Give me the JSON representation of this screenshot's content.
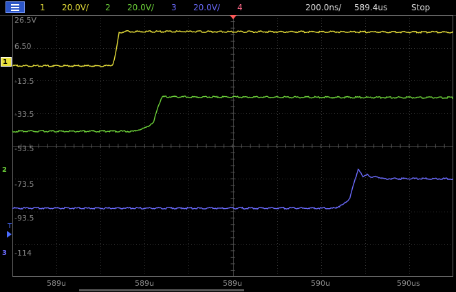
{
  "top_bar": {
    "ch1": {
      "num": "1",
      "scale": "20.0V/",
      "color": "#e8e03a"
    },
    "ch2": {
      "num": "2",
      "scale": "20.0V/",
      "color": "#6ed43a"
    },
    "ch3": {
      "num": "3",
      "scale": "20.0V/",
      "color": "#6c6cff"
    },
    "ch4": {
      "num": "4",
      "color": "#ff6a8a"
    },
    "timebase": "200.0ns/",
    "delay": "589.4us",
    "run_state": "Stop"
  },
  "voltage_labels": [
    "26.5V",
    "6.50",
    "-13.5",
    "-33.5",
    "-53.5",
    "-73.5",
    "-93.5",
    "-114"
  ],
  "channel_markers": {
    "ch1": "1",
    "ch2": "2",
    "ch3": "3",
    "trigger": "T"
  },
  "time_labels": [
    "589u",
    "589u",
    "589u",
    "590u",
    "590us"
  ],
  "chart_data": {
    "type": "line",
    "xlim_div": [
      0,
      10
    ],
    "ylim_div": [
      0,
      8
    ],
    "grid": true,
    "series": [
      {
        "channel": "1",
        "color": "#e8e03a",
        "points": [
          [
            0,
            1.55
          ],
          [
            2.2,
            1.55
          ],
          [
            2.28,
            1.5
          ],
          [
            2.34,
            1.2
          ],
          [
            2.42,
            0.55
          ],
          [
            2.55,
            0.5
          ],
          [
            10,
            0.52
          ]
        ]
      },
      {
        "channel": "2",
        "color": "#6ed43a",
        "points": [
          [
            0,
            3.55
          ],
          [
            2.75,
            3.55
          ],
          [
            2.95,
            3.48
          ],
          [
            3.2,
            3.3
          ],
          [
            3.3,
            2.8
          ],
          [
            3.4,
            2.5
          ],
          [
            3.5,
            2.5
          ],
          [
            10,
            2.52
          ]
        ]
      },
      {
        "channel": "3",
        "color": "#6c6cff",
        "points": [
          [
            0,
            5.9
          ],
          [
            7.3,
            5.9
          ],
          [
            7.5,
            5.8
          ],
          [
            7.65,
            5.6
          ],
          [
            7.78,
            5.0
          ],
          [
            7.85,
            4.68
          ],
          [
            7.95,
            4.95
          ],
          [
            8.05,
            4.85
          ],
          [
            8.15,
            4.98
          ],
          [
            8.25,
            4.92
          ],
          [
            8.4,
            5.0
          ],
          [
            10,
            5.0
          ]
        ]
      }
    ]
  }
}
